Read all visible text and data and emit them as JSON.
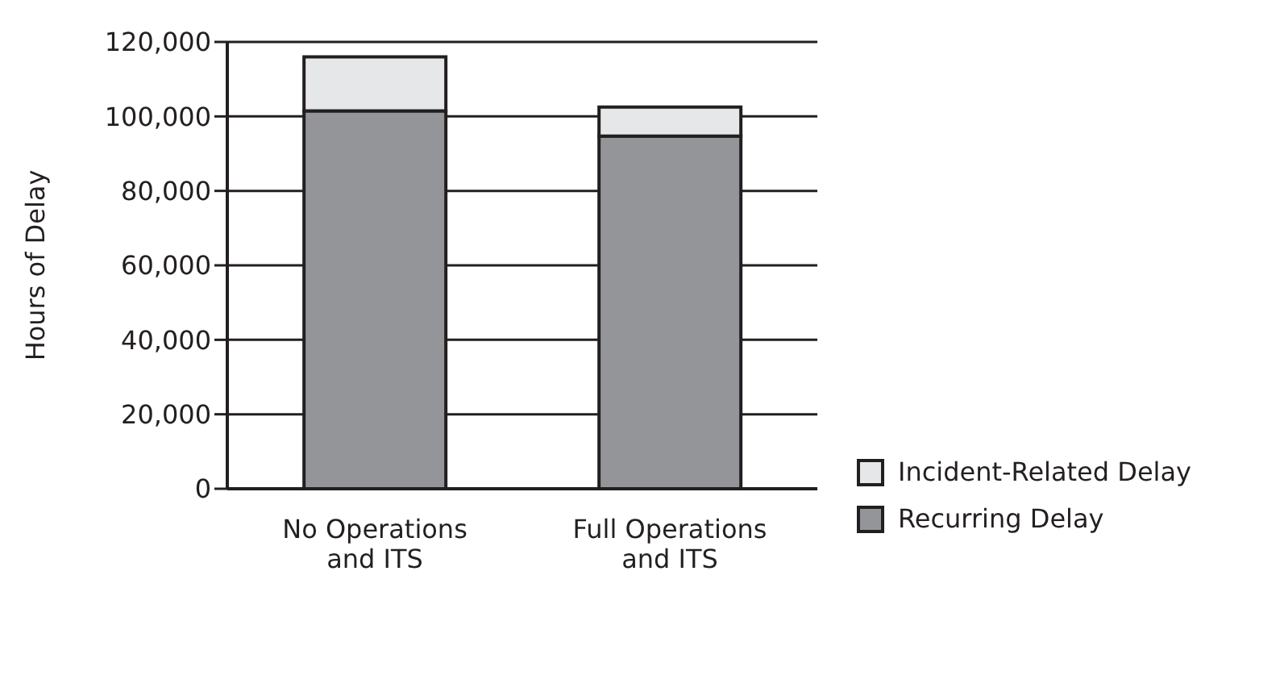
{
  "chart_data": {
    "type": "bar",
    "ylabel": "Hours of Delay",
    "categories": [
      "No Operations and ITS",
      "Full Operations and ITS"
    ],
    "series": [
      {
        "name": "Recurring Delay",
        "color": "#939598",
        "values": [
          101500,
          94700
        ]
      },
      {
        "name": "Incident-Related Delay",
        "color": "#e6e7e8",
        "values": [
          14500,
          7800
        ]
      }
    ],
    "stacked": true,
    "ylim": [
      0,
      120000
    ],
    "yticks": [
      0,
      {
        "value": 20000,
        "label": "20,000"
      },
      {
        "value": 40000,
        "label": "40,000"
      },
      {
        "value": 60000,
        "label": "60,000"
      },
      {
        "value": 80000,
        "label": "80,000"
      },
      {
        "value": 100000,
        "label": "100,000"
      },
      {
        "value": 120000,
        "label": "120,000"
      }
    ],
    "grid": "y",
    "legend": "right"
  }
}
